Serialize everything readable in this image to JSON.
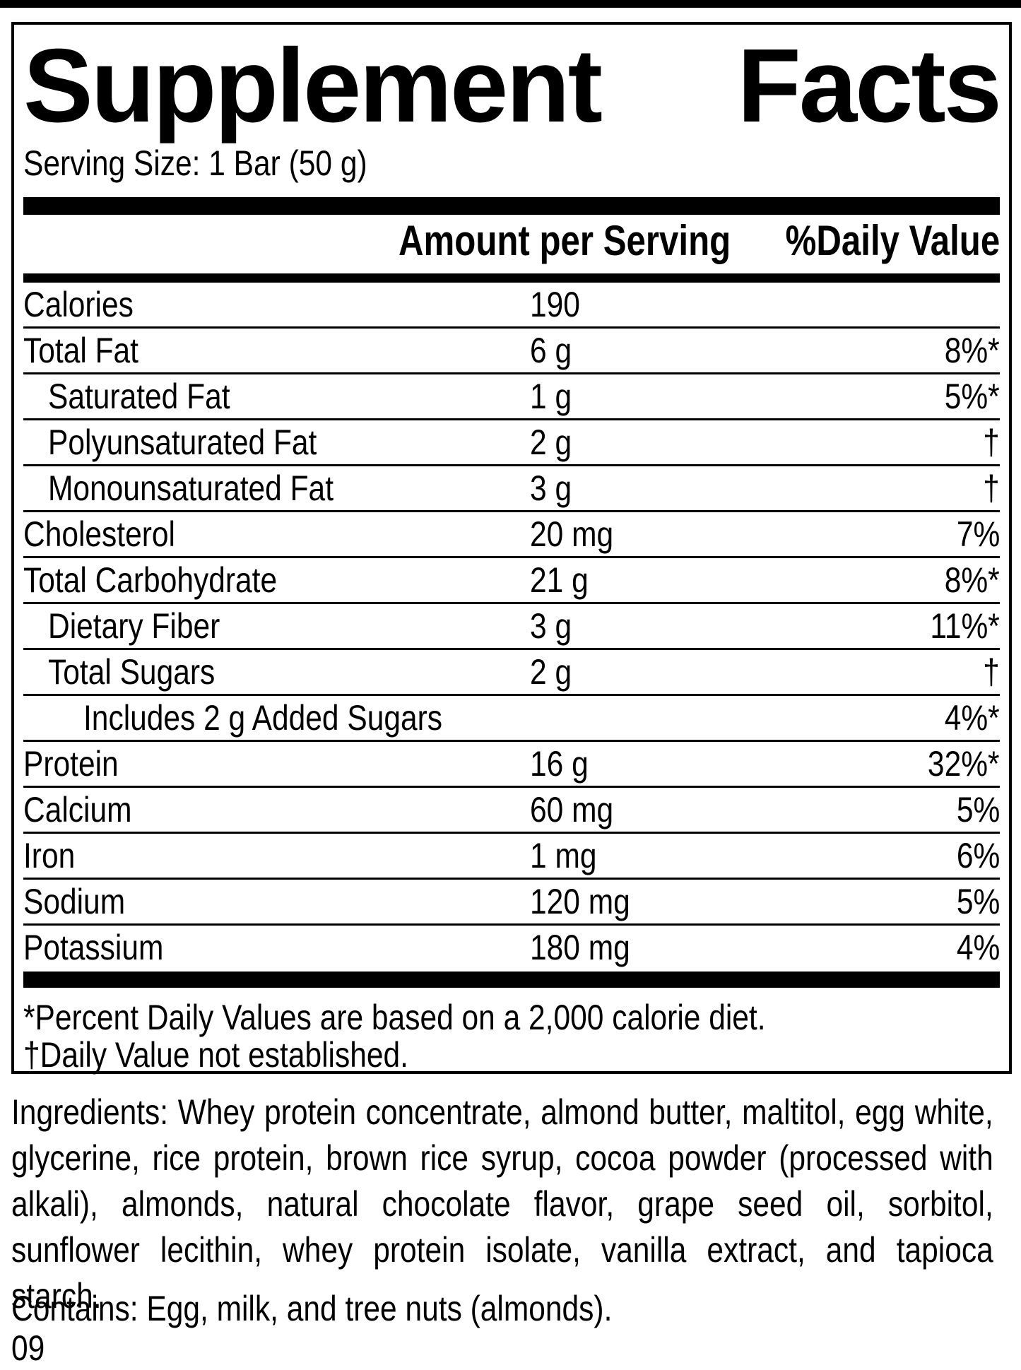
{
  "colors": {
    "ink": "#000000",
    "paper": "#ffffff"
  },
  "panel": {
    "title_words": [
      "Supplement",
      "Facts"
    ],
    "serving_size": "Serving Size: 1 Bar (50 g)",
    "columns": {
      "amount_header": "Amount per Serving",
      "dv_header": "%Daily Value"
    },
    "rows": [
      {
        "name": "Calories",
        "amount": "190",
        "dv": "",
        "indent": 0
      },
      {
        "name": "Total Fat",
        "amount": "6 g",
        "dv": "8%*",
        "indent": 0
      },
      {
        "name": "Saturated Fat",
        "amount": "1 g",
        "dv": "5%*",
        "indent": 1
      },
      {
        "name": "Polyunsaturated Fat",
        "amount": "2 g",
        "dv": "†",
        "indent": 1
      },
      {
        "name": "Monounsaturated Fat",
        "amount": "3 g",
        "dv": "†",
        "indent": 1
      },
      {
        "name": "Cholesterol",
        "amount": "20 mg",
        "dv": "7%",
        "indent": 0
      },
      {
        "name": "Total Carbohydrate",
        "amount": "21 g",
        "dv": "8%*",
        "indent": 0
      },
      {
        "name": "Dietary Fiber",
        "amount": "3 g",
        "dv": "11%*",
        "indent": 1
      },
      {
        "name": "Total Sugars",
        "amount": "2 g",
        "dv": "†",
        "indent": 1
      },
      {
        "name": "Includes 2 g Added Sugars",
        "amount": "",
        "dv": "4%*",
        "indent": 2
      },
      {
        "name": "Protein",
        "amount": "16 g",
        "dv": "32%*",
        "indent": 0
      },
      {
        "name": "Calcium",
        "amount": "60 mg",
        "dv": "5%",
        "indent": 0
      },
      {
        "name": "Iron",
        "amount": "1 mg",
        "dv": "6%",
        "indent": 0
      },
      {
        "name": "Sodium",
        "amount": "120 mg",
        "dv": "5%",
        "indent": 0
      },
      {
        "name": "Potassium",
        "amount": "180 mg",
        "dv": "4%",
        "indent": 0
      }
    ],
    "footnotes": [
      "*Percent Daily Values are based on a 2,000 calorie diet.",
      "†Daily Value not established."
    ]
  },
  "ingredients": "Ingredients: Whey protein concentrate, almond butter, maltitol, egg white, glycerine, rice protein, brown rice syrup, cocoa powder (processed with alkali), almonds, natural chocolate flavor, grape seed oil, sorbitol, sunflower lecithin, whey protein isolate, vanilla extract, and tapioca starch.",
  "contains": "Contains: Egg, milk, and tree nuts (almonds).",
  "footer_code": "09"
}
